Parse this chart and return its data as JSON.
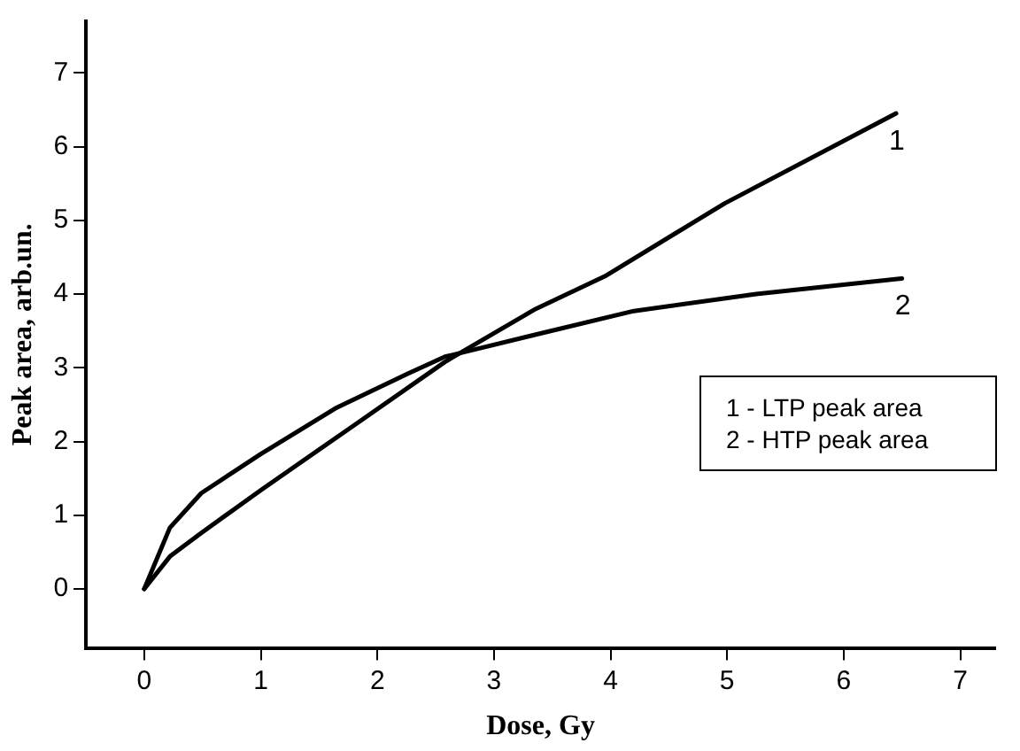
{
  "chart_data": {
    "type": "line",
    "xlabel": "Dose, Gy",
    "ylabel": "Peak area, arb.un.",
    "xlim": [
      -0.5,
      7.3
    ],
    "ylim": [
      -0.8,
      7.7
    ],
    "xticks": [
      0,
      1,
      2,
      3,
      4,
      5,
      6,
      7
    ],
    "yticks": [
      0,
      1,
      2,
      3,
      4,
      5,
      6,
      7
    ],
    "grid": false,
    "legend": false,
    "marker": "none",
    "line_style": "solid",
    "series": [
      {
        "name": "1",
        "color": "#000000",
        "x": [
          0,
          0.22,
          0.49,
          1.0,
          1.8,
          2.58,
          3.36,
          3.95,
          4.98,
          6.45
        ],
        "values": [
          0,
          0.44,
          0.76,
          1.34,
          2.22,
          3.08,
          3.8,
          4.24,
          5.23,
          6.45
        ]
      },
      {
        "name": "2",
        "color": "#000000",
        "x": [
          0,
          0.22,
          0.49,
          1.0,
          1.64,
          2.26,
          2.58,
          3.36,
          4.2,
          5.25,
          6.5
        ],
        "values": [
          0,
          0.83,
          1.3,
          1.83,
          2.45,
          2.92,
          3.15,
          3.45,
          3.77,
          4.0,
          4.21
        ]
      }
    ],
    "annotations": [
      "1 - LTP peak area",
      "2 - HTP peak area"
    ]
  }
}
